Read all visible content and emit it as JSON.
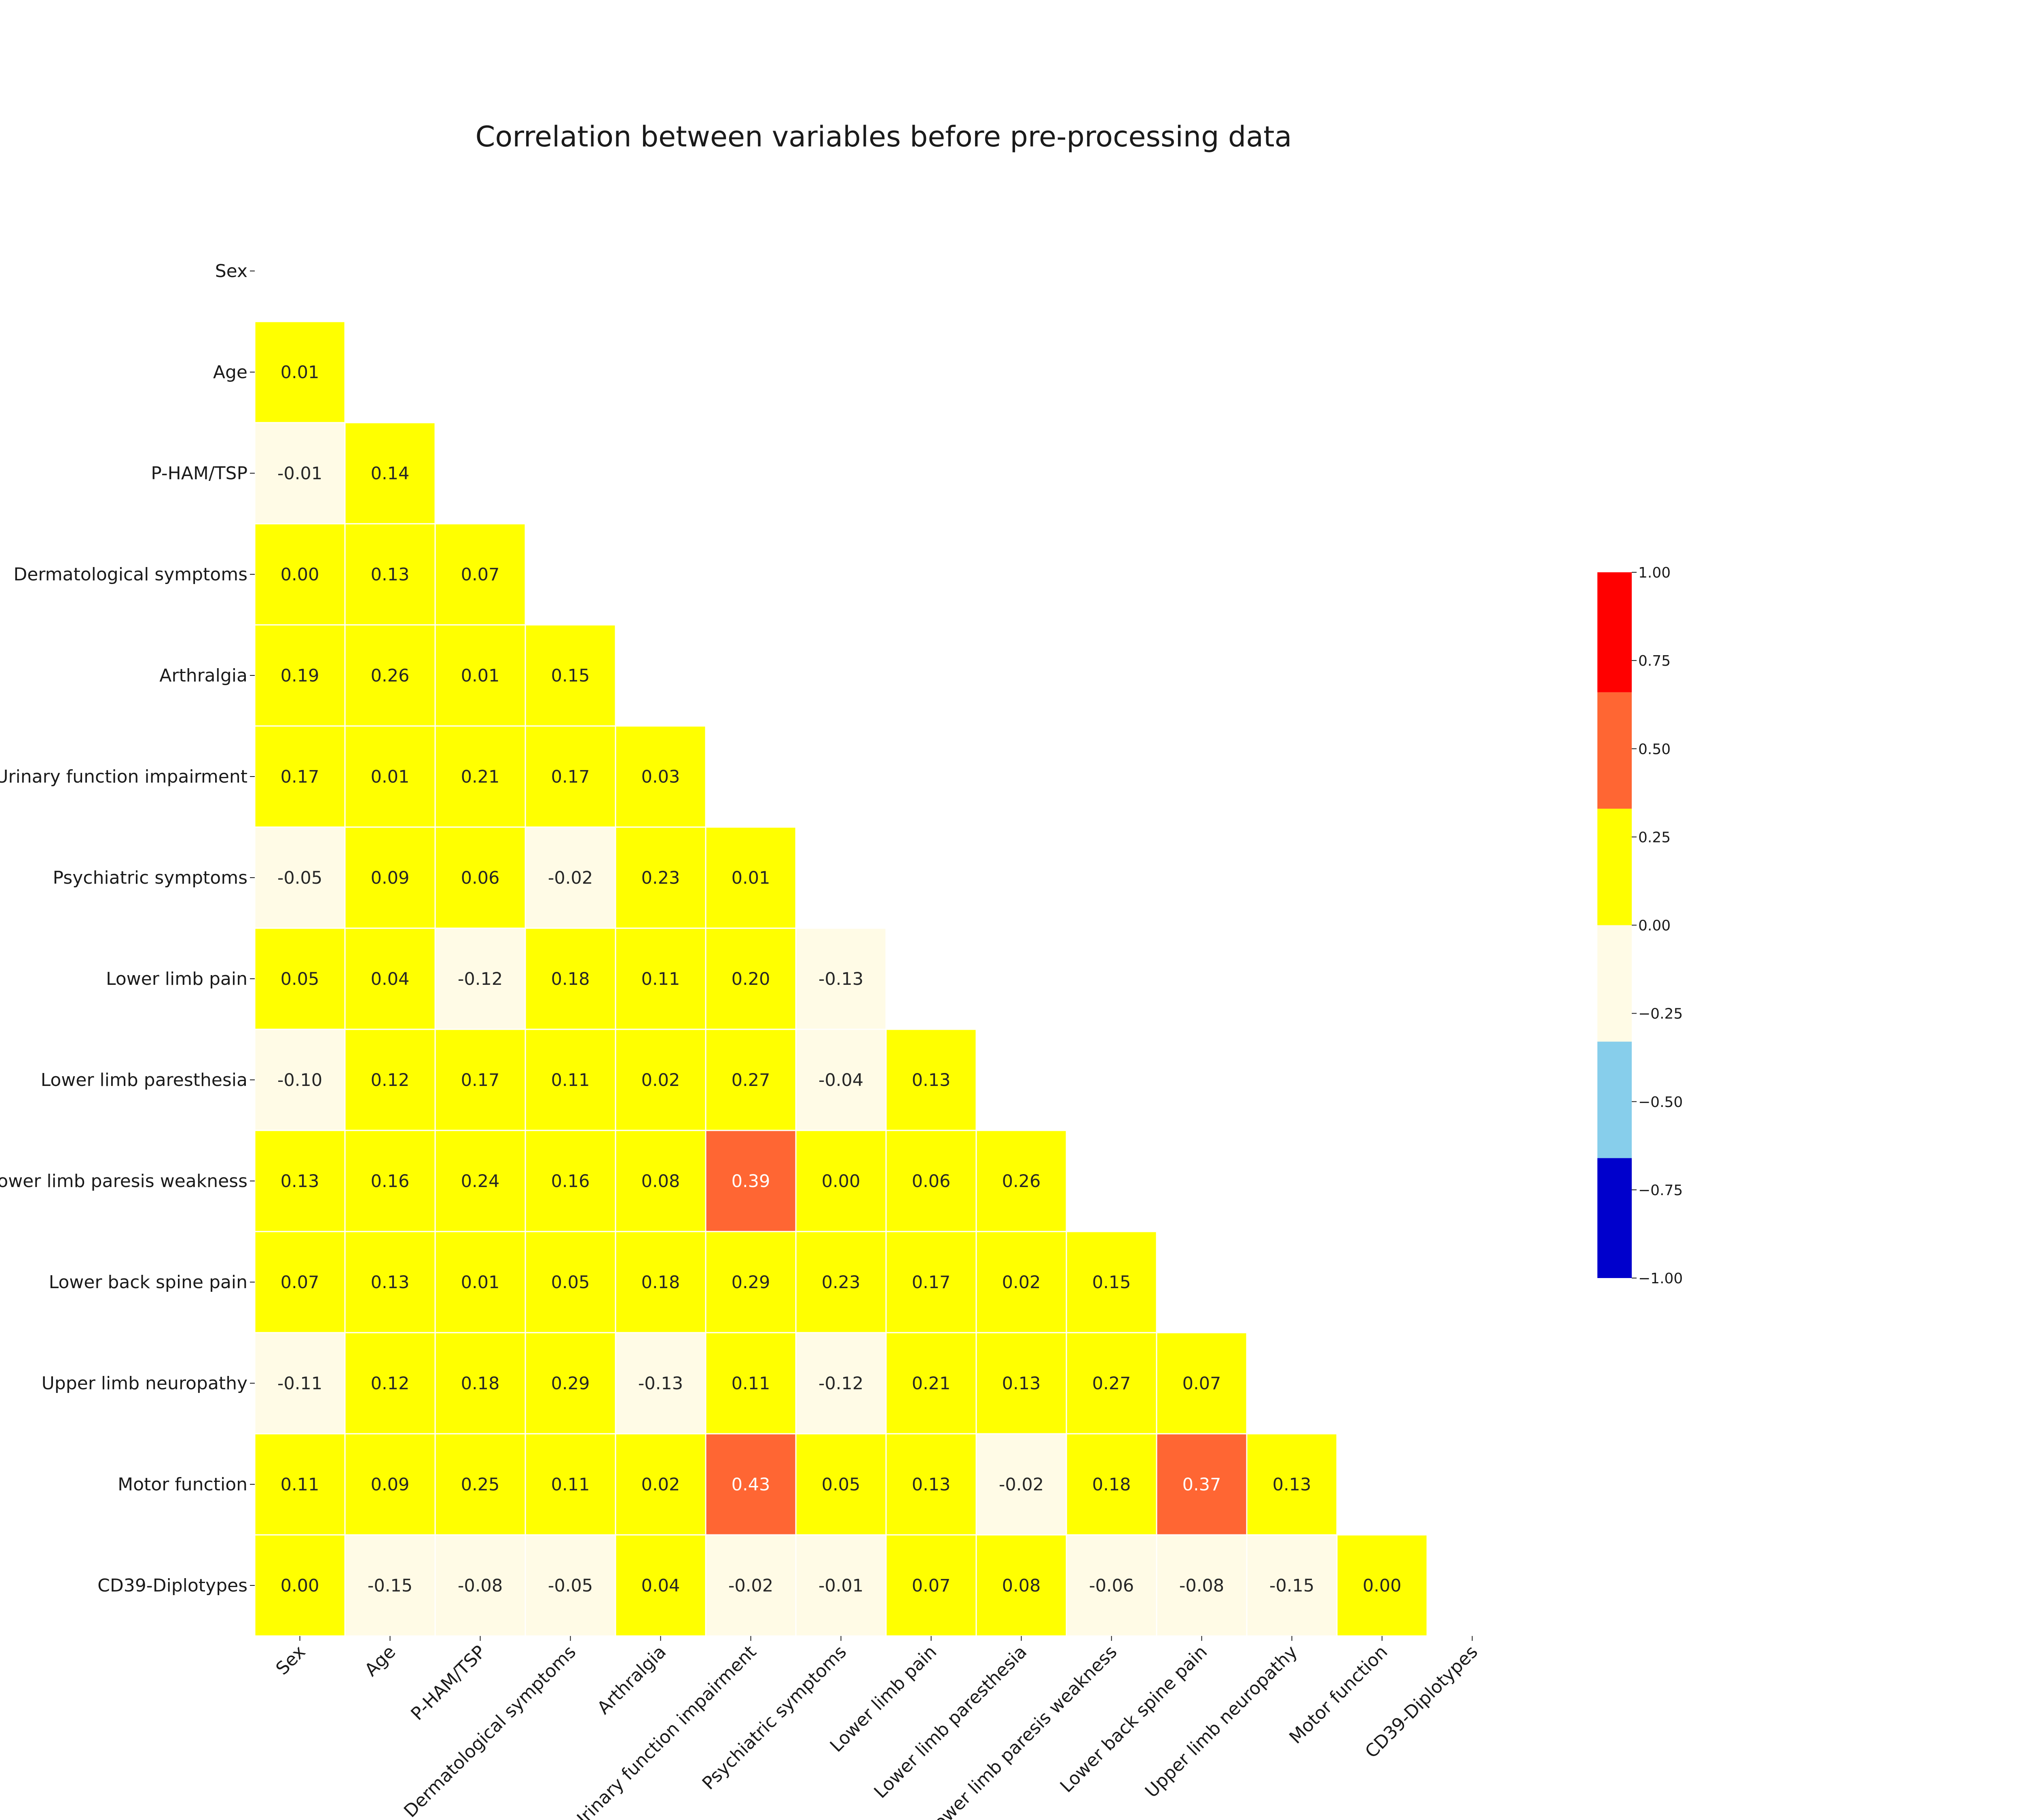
{
  "chart_data": {
    "type": "heatmap",
    "title": "Correlation between variables before pre-processing data",
    "variables": [
      "Sex",
      "Age",
      "P-HAM/TSP",
      "Dermatological symptoms",
      "Arthralgia",
      "Urinary function impairment",
      "Psychiatric symptoms",
      "Lower limb pain",
      "Lower limb paresthesia",
      "Lower limb paresis weakness",
      "Lower back spine pain",
      "Upper limb neuropathy",
      "Motor function",
      "CD39-Diplotypes"
    ],
    "lower_triangle": [
      [],
      [
        0.01
      ],
      [
        -0.01,
        0.14
      ],
      [
        -0.0,
        0.13,
        0.07
      ],
      [
        0.19,
        0.26,
        0.01,
        0.15
      ],
      [
        0.17,
        0.01,
        0.21,
        0.17,
        0.03
      ],
      [
        -0.05,
        0.09,
        0.06,
        -0.02,
        0.23,
        0.01
      ],
      [
        0.05,
        0.04,
        -0.12,
        0.18,
        0.11,
        0.2,
        -0.13
      ],
      [
        -0.1,
        0.12,
        0.17,
        0.11,
        0.02,
        0.27,
        -0.04,
        0.13
      ],
      [
        0.13,
        0.16,
        0.24,
        0.16,
        0.08,
        0.39,
        -0.0,
        0.06,
        0.26
      ],
      [
        0.07,
        0.13,
        0.01,
        0.05,
        0.18,
        0.29,
        0.23,
        0.17,
        0.02,
        0.15
      ],
      [
        -0.11,
        0.12,
        0.18,
        0.29,
        -0.13,
        0.11,
        -0.12,
        0.21,
        0.13,
        0.27,
        0.07
      ],
      [
        0.11,
        0.09,
        0.25,
        0.11,
        0.02,
        0.43,
        0.05,
        0.13,
        -0.02,
        0.18,
        0.37,
        0.13
      ],
      [
        -0.0,
        -0.15,
        -0.08,
        -0.05,
        0.04,
        -0.02,
        -0.01,
        0.07,
        0.08,
        -0.06,
        -0.08,
        -0.15,
        0.0
      ]
    ],
    "vmin": -1.0,
    "vmax": 1.0,
    "color_bins": [
      {
        "from": -1.0,
        "to": -0.66,
        "color": "#0000cc"
      },
      {
        "from": -0.66,
        "to": -0.33,
        "color": "#87ceeb"
      },
      {
        "from": -0.33,
        "to": 0.0,
        "color": "#fffbe6"
      },
      {
        "from": 0.0,
        "to": 0.33,
        "color": "#ffff00"
      },
      {
        "from": 0.33,
        "to": 0.66,
        "color": "#ff6633"
      },
      {
        "from": 0.66,
        "to": 1.0,
        "color": "#ff0000"
      }
    ],
    "colorbar_ticks": [
      "1.00",
      "0.75",
      "0.50",
      "0.25",
      "0.00",
      "−0.25",
      "−0.50",
      "−0.75",
      "−1.00"
    ],
    "colorbar_tick_values": [
      1.0,
      0.75,
      0.5,
      0.25,
      0.0,
      -0.25,
      -0.5,
      -0.75,
      -1.0
    ],
    "legend": "right"
  }
}
